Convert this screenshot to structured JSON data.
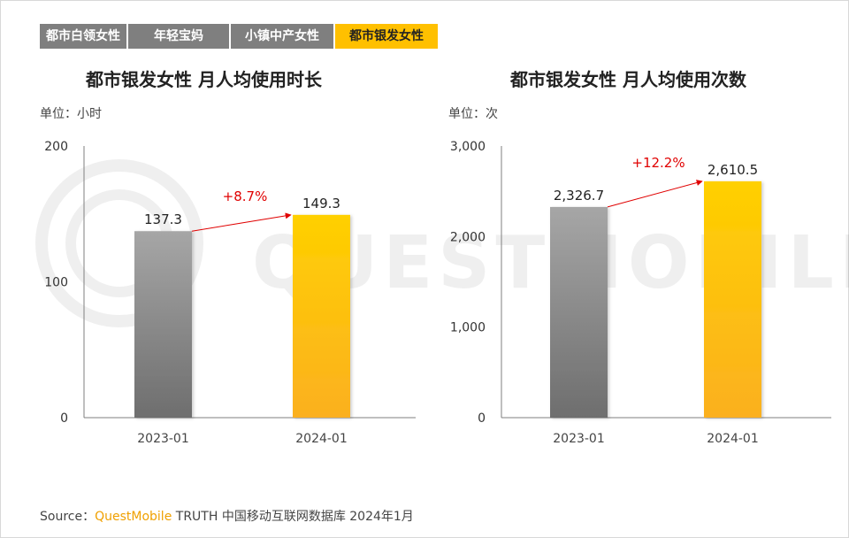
{
  "tabs": [
    {
      "label": "都市白领女性",
      "active": false
    },
    {
      "label": "年轻宝妈",
      "active": false
    },
    {
      "label": "小镇中产女性",
      "active": false
    },
    {
      "label": "都市银发女性",
      "active": true
    }
  ],
  "watermark": "QUESTMOBILE",
  "colors": {
    "gray_bar_top": "#a6a6a6",
    "gray_bar_bottom": "#6e6e6e",
    "gold_bar_top": "#ffd000",
    "gold_bar_bottom": "#fbb020",
    "growth": "#e00000",
    "tab_active": "#ffc000",
    "tab_inactive": "#7f7f7f"
  },
  "chart_data": [
    {
      "type": "bar",
      "title": "都市银发女性 月人均使用时长",
      "unit_label": "单位：小时",
      "categories": [
        "2023-01",
        "2024-01"
      ],
      "values": [
        137.3,
        149.3
      ],
      "value_labels": [
        "137.3",
        "149.3"
      ],
      "yticks": [
        0,
        100,
        200
      ],
      "ytick_labels": [
        "0",
        "100",
        "200"
      ],
      "ylim": [
        0,
        200
      ],
      "growth_label": "+8.7%",
      "grid": false
    },
    {
      "type": "bar",
      "title": "都市银发女性 月人均使用次数",
      "unit_label": "单位：次",
      "categories": [
        "2023-01",
        "2024-01"
      ],
      "values": [
        2326.7,
        2610.5
      ],
      "value_labels": [
        "2,326.7",
        "2,610.5"
      ],
      "yticks": [
        0,
        1000,
        2000,
        3000
      ],
      "ytick_labels": [
        "0",
        "1,000",
        "2,000",
        "3,000"
      ],
      "ylim": [
        0,
        3000
      ],
      "growth_label": "+12.2%",
      "grid": false
    }
  ],
  "source": {
    "prefix": "Source：",
    "brand": "QuestMobile",
    "rest": " TRUTH 中国移动互联网数据库 2024年1月"
  }
}
